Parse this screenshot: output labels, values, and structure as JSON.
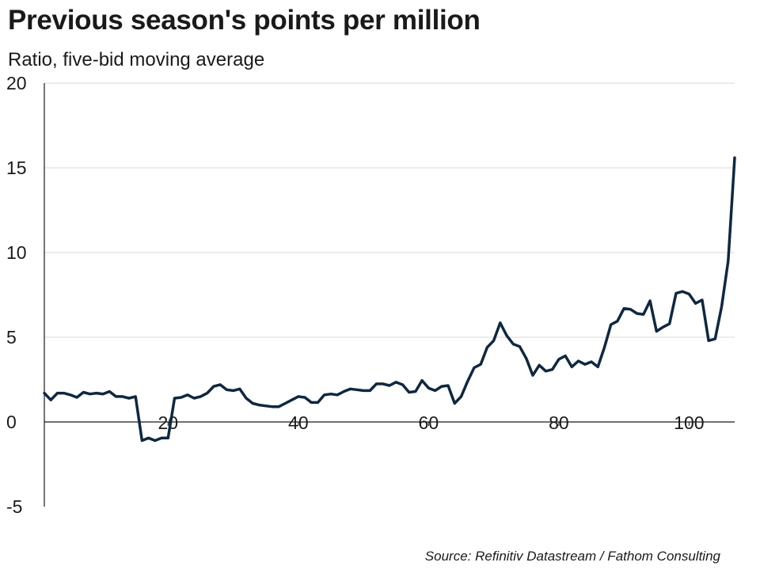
{
  "header": {
    "title": "Previous season's points per million",
    "subtitle": "Ratio, five-bid moving average"
  },
  "footer": {
    "source": "Source: Refinitiv Datastream / Fathom Consulting"
  },
  "chart_data": {
    "type": "line",
    "title": "Previous season's points per million",
    "subtitle": "Ratio, five-bid moving average",
    "xlabel": "",
    "ylabel": "",
    "xlim": [
      1,
      107
    ],
    "ylim": [
      -5,
      20
    ],
    "y_ticks": [
      -5,
      0,
      5,
      10,
      15,
      20
    ],
    "x_ticks": [
      20,
      40,
      60,
      80,
      100
    ],
    "grid": "horizontal",
    "legend": "none",
    "colors": {
      "line": "#0e2841",
      "grid": "#d9d9d9",
      "axis": "#1a1a1a"
    },
    "series": [
      {
        "x": [
          1,
          2,
          3,
          4,
          5,
          6,
          7,
          8,
          9,
          10,
          11,
          12,
          13,
          14,
          15,
          16,
          17,
          18,
          19,
          20,
          21,
          22,
          23,
          24,
          25,
          26,
          27,
          28,
          29,
          30,
          31,
          32,
          33,
          34,
          35,
          36,
          37,
          38,
          39,
          40,
          41,
          42,
          43,
          44,
          45,
          46,
          47,
          48,
          49,
          50,
          51,
          52,
          53,
          54,
          55,
          56,
          57,
          58,
          59,
          60,
          61,
          62,
          63,
          64,
          65,
          66,
          67,
          68,
          69,
          70,
          71,
          72,
          73,
          74,
          75,
          76,
          77,
          78,
          79,
          80,
          81,
          82,
          83,
          84,
          85,
          86,
          87,
          88,
          89,
          90,
          91,
          92,
          93,
          94,
          95,
          96,
          97,
          98,
          99,
          100,
          101,
          102,
          103,
          104,
          105,
          106,
          107
        ],
        "y": [
          1.7,
          1.3,
          1.7,
          1.7,
          1.6,
          1.45,
          1.75,
          1.65,
          1.7,
          1.65,
          1.8,
          1.5,
          1.5,
          1.4,
          1.5,
          -1.1,
          -0.95,
          -1.1,
          -0.95,
          -0.95,
          1.4,
          1.45,
          1.6,
          1.4,
          1.5,
          1.7,
          2.1,
          2.2,
          1.9,
          1.85,
          1.95,
          1.4,
          1.1,
          1.0,
          0.95,
          0.9,
          0.9,
          1.1,
          1.3,
          1.5,
          1.45,
          1.15,
          1.15,
          1.6,
          1.65,
          1.6,
          1.8,
          1.95,
          1.9,
          1.85,
          1.85,
          2.25,
          2.25,
          2.15,
          2.35,
          2.2,
          1.75,
          1.8,
          2.45,
          2.0,
          1.85,
          2.1,
          2.15,
          1.1,
          1.5,
          2.4,
          3.2,
          3.4,
          4.4,
          4.8,
          5.85,
          5.1,
          4.6,
          4.45,
          3.75,
          2.75,
          3.35,
          3.0,
          3.1,
          3.7,
          3.9,
          3.25,
          3.6,
          3.4,
          3.55,
          3.25,
          4.4,
          5.75,
          5.95,
          6.7,
          6.65,
          6.4,
          6.35,
          7.15,
          5.35,
          5.6,
          5.8,
          7.6,
          7.7,
          7.55,
          7.0,
          7.2,
          4.8,
          4.9,
          6.8,
          9.5,
          15.6
        ]
      }
    ]
  }
}
